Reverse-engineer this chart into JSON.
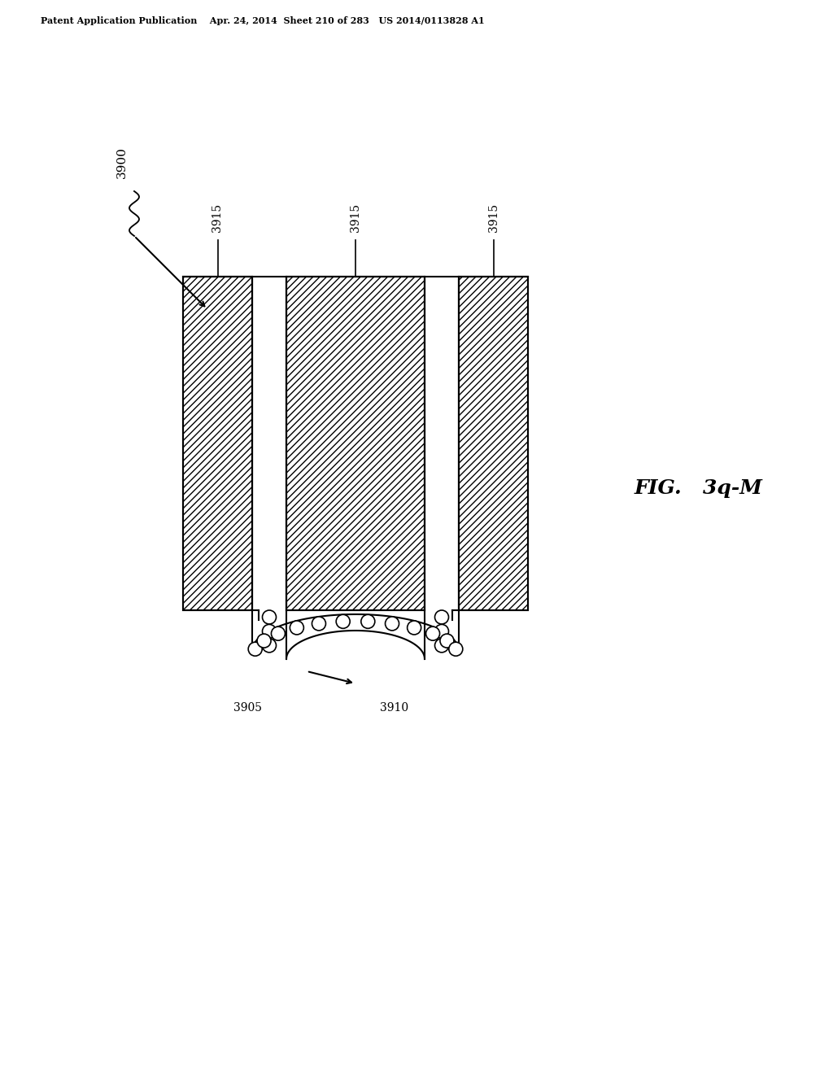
{
  "bg_color": "#ffffff",
  "line_color": "#000000",
  "hatch_color": "#555555",
  "title_text": "Patent Application Publication    Apr. 24, 2014  Sheet 210 of 283   US 2014/0113828 A1",
  "fig_label": "FIG.   3q-M",
  "label_3900": "3900",
  "label_3905": "3905",
  "label_3910": "3910",
  "label_3915a": "3915",
  "label_3915b": "3915",
  "label_3915c": "3915",
  "canvas_xlim": [
    0,
    10.24
  ],
  "canvas_ylim": [
    0,
    13.2
  ]
}
